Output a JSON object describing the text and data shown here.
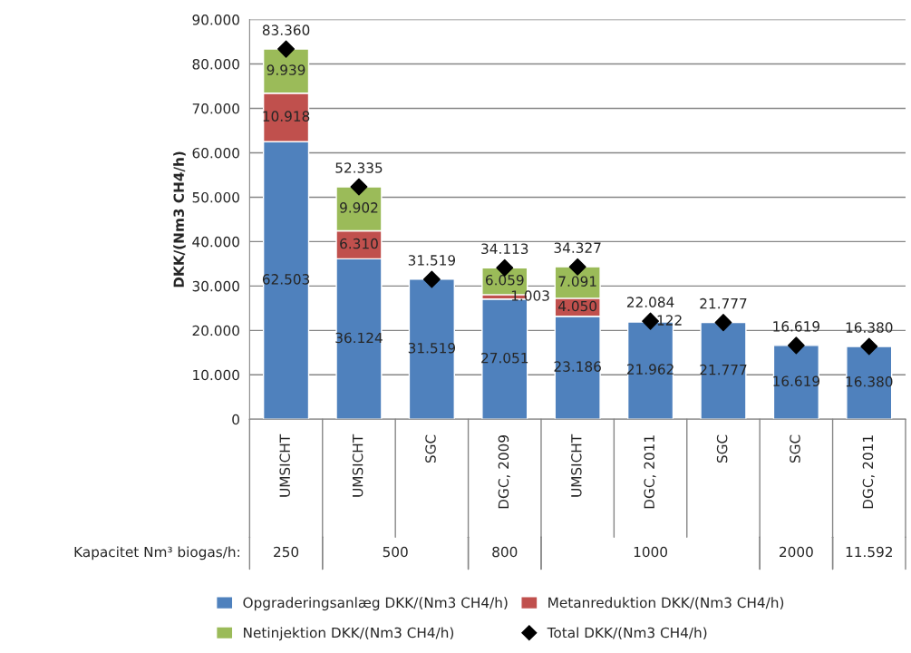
{
  "chart_data": {
    "type": "bar",
    "stacked": true,
    "ylabel": "DKK/(Nm3 CH4/h)",
    "categories": [
      "UMSICHT",
      "UMSICHT",
      "SGC",
      "DGC, 2009",
      "UMSICHT",
      "DGC, 2011",
      "SGC",
      "SGC",
      "DGC, 2011"
    ],
    "series": [
      {
        "name": "Opgraderingsanlæg DKK/(Nm3 CH4/h)",
        "color": "#4f81bd",
        "values": [
          62503,
          36124,
          31519,
          27051,
          23186,
          21962,
          21777,
          16619,
          16380
        ],
        "value_labels": [
          "62.503",
          "36.124",
          "31.519",
          "27.051",
          "23.186",
          "21.962",
          "21.777",
          "16.619",
          "16.380"
        ]
      },
      {
        "name": "Metanreduktion DKK/(Nm3 CH4/h)",
        "color": "#c0504d",
        "values": [
          10918,
          6310,
          null,
          1003,
          4050,
          122,
          null,
          null,
          null
        ],
        "value_labels": [
          "10.918",
          "6.310",
          null,
          "1.003",
          "4.050",
          "122",
          null,
          null,
          null
        ]
      },
      {
        "name": "Netinjektion DKK/(Nm3 CH4/h)",
        "color": "#9bbb59",
        "values": [
          9939,
          9902,
          null,
          6059,
          7091,
          null,
          null,
          null,
          null
        ],
        "value_labels": [
          "9.939",
          "9.902",
          null,
          "6.059",
          "7.091",
          null,
          null,
          null,
          null
        ]
      },
      {
        "name": "Total DKK/(Nm3 CH4/h)",
        "type": "scatter",
        "color": "#000000",
        "marker": "diamond",
        "values": [
          83360,
          52335,
          31519,
          34113,
          34327,
          22084,
          21777,
          16619,
          16380
        ]
      }
    ],
    "totals": [
      "83.360",
      "52.335",
      "31.519",
      "34.113",
      "34.327",
      "22.084",
      "21.777",
      "16.619",
      "16.380"
    ],
    "ylim": [
      0,
      90000
    ],
    "yticks": [
      0,
      {
        "value": 10000,
        "label": "10.000"
      },
      {
        "value": 20000,
        "label": "20.000"
      },
      {
        "value": 30000,
        "label": "30.000"
      },
      {
        "value": 40000,
        "label": "40.000"
      },
      {
        "value": 50000,
        "label": "50.000"
      },
      {
        "value": 60000,
        "label": "60.000"
      },
      {
        "value": 70000,
        "label": "70.000"
      },
      {
        "value": 80000,
        "label": "80.000"
      },
      {
        "value": 90000,
        "label": "90.000"
      }
    ],
    "grid": "y",
    "legend": "bottom",
    "annotations": [
      "Kapacitet Nm³ biogas/h:",
      "250",
      "500",
      "800",
      "1000",
      "2000",
      "11.592"
    ]
  }
}
